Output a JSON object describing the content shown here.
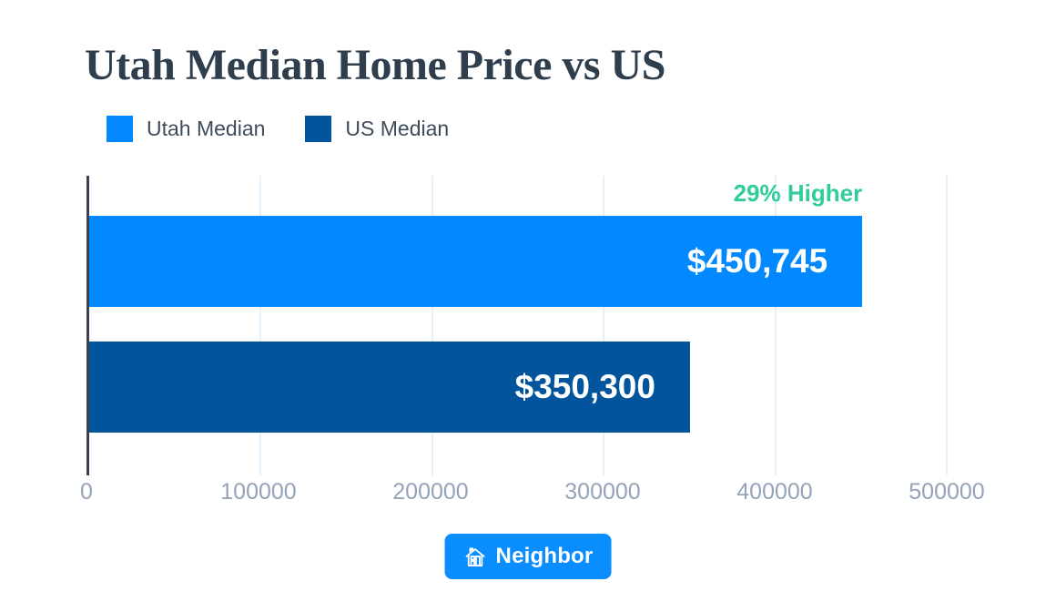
{
  "chart_data": {
    "type": "bar",
    "orientation": "horizontal",
    "title": "Utah Median Home Price vs US",
    "categories": [
      "Utah Median",
      "US Median"
    ],
    "values": [
      450745,
      350300
    ],
    "value_labels": [
      "$450,745",
      "$350,300"
    ],
    "series": [
      {
        "name": "Utah Median",
        "value": 450745,
        "label": "$450,745",
        "color": "#0289ff"
      },
      {
        "name": "US Median",
        "value": 350300,
        "label": "$350,300",
        "color": "#02549c"
      }
    ],
    "annotation": {
      "text": "29% Higher",
      "applies_to": "Utah Median",
      "color": "#30cc9c"
    },
    "xlim": [
      0,
      500000
    ],
    "x_ticks": [
      0,
      100000,
      200000,
      300000,
      400000,
      500000
    ],
    "x_tick_labels": [
      "0",
      "100000",
      "200000",
      "300000",
      "400000",
      "500000"
    ],
    "xlabel": "",
    "ylabel": "",
    "grid": "vertical-light-blue",
    "legend_position": "top-left",
    "legend": [
      {
        "label": "Utah Median",
        "color": "#0289ff"
      },
      {
        "label": "US Median",
        "color": "#02549c"
      }
    ]
  },
  "colors": {
    "background": "#ffffff",
    "title_text": "#2f3e4d",
    "legend_text": "#3e4c5b",
    "tick_text": "#94a3b8",
    "gridline": "#e2f1fc",
    "axis_line": "#374151",
    "bar_value_text": "#ffffff",
    "annotation_green": "#30cc9c",
    "brand_blue": "#0a8dff"
  },
  "branding": {
    "logo_text": "Neighbor",
    "logo_icon": "house-icon",
    "button_color": "#0a8dff"
  }
}
